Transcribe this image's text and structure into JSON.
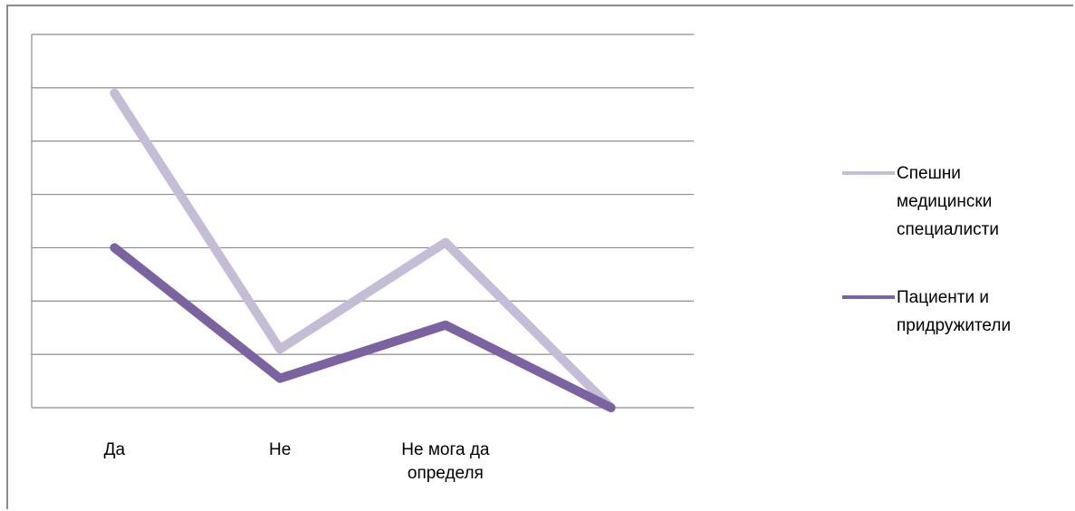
{
  "chart_data": {
    "type": "line",
    "categories": [
      [
        "Да"
      ],
      [
        "Не"
      ],
      [
        "Не мога да",
        "определя"
      ],
      [
        ""
      ]
    ],
    "ylim": [
      0,
      7
    ],
    "grid": true,
    "legend_position": "right",
    "series": [
      {
        "name": "Спешни медицински специалисти",
        "label_lines": [
          "Спешни",
          "медицински",
          "специалисти"
        ],
        "color": "#c5bdd5",
        "values": [
          5.9,
          1.1,
          3.1,
          0
        ]
      },
      {
        "name": "Пациенти и придружители",
        "label_lines": [
          "Пациенти и",
          "придружители"
        ],
        "color": "#7b62a0",
        "values": [
          3.0,
          0.55,
          1.55,
          0
        ]
      }
    ]
  }
}
